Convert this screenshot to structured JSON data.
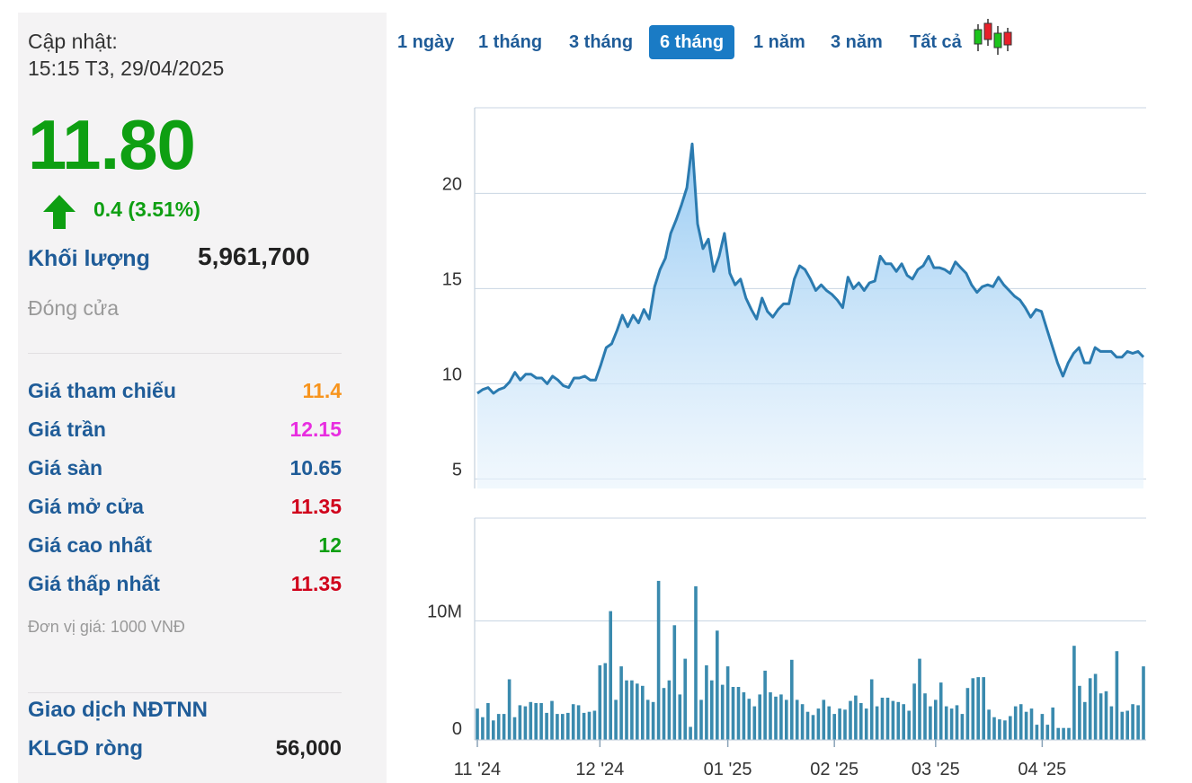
{
  "info": {
    "updated_label": "Cập nhật:",
    "updated_time": "15:15 T3, 29/04/2025",
    "price": "11.80",
    "change": "0.4 (3.51%)",
    "volume_label": "Khối lượng",
    "volume_value": "5,961,700",
    "status": "Đóng cửa",
    "rows": [
      {
        "label": "Giá tham chiếu",
        "value": "11.4",
        "color": "#f7941d"
      },
      {
        "label": "Giá trần",
        "value": "12.15",
        "color": "#e82de0"
      },
      {
        "label": "Giá sàn",
        "value": "10.65",
        "color": "#1f5c98"
      },
      {
        "label": "Giá mở cửa",
        "value": "11.35",
        "color": "#d0021b"
      },
      {
        "label": "Giá cao nhất",
        "value": "12",
        "color": "#0e9f12"
      },
      {
        "label": "Giá thấp nhất",
        "value": "11.35",
        "color": "#d0021b"
      }
    ],
    "unit": "Đơn vị giá: 1000 VNĐ",
    "foreign_title": "Giao dịch NĐTNN",
    "foreign_net_label": "KLGD ròng",
    "foreign_net_value": "56,000"
  },
  "tabs": [
    {
      "label": "1 ngày"
    },
    {
      "label": "1 tháng"
    },
    {
      "label": "3 tháng"
    },
    {
      "label": "6 tháng",
      "active": true
    },
    {
      "label": "1 năm"
    },
    {
      "label": "3 năm"
    },
    {
      "label": "Tất cả"
    }
  ],
  "colors": {
    "up": "#0e9f12",
    "line": "#2b7bb0",
    "bar": "#3a8aae",
    "accent": "#1a7bc5"
  },
  "chart_data": [
    {
      "type": "area",
      "title": "",
      "xlabel": "",
      "ylabel": "",
      "x_ticks": [
        "11 '24",
        "12 '24",
        "01 '25",
        "02 '25",
        "03 '25",
        "04 '25"
      ],
      "y_ticks": [
        5,
        10,
        15,
        20
      ],
      "ylim": [
        4.5,
        24.5
      ],
      "grid": true,
      "series": [
        {
          "values": [
            9.5,
            9.7,
            9.8,
            9.5,
            9.7,
            9.8,
            10.1,
            10.6,
            10.2,
            10.5,
            10.5,
            10.3,
            10.3,
            10.0,
            10.4,
            10.2,
            9.9,
            9.8,
            10.3,
            10.3,
            10.4,
            10.2,
            10.2,
            11.0,
            11.9,
            12.1,
            12.8,
            13.6,
            13.0,
            13.6,
            13.2,
            13.9,
            13.4,
            15.1,
            16.0,
            16.6,
            17.9,
            18.6,
            19.4,
            20.3,
            22.6,
            18.4,
            17.1,
            17.6,
            15.9,
            16.7,
            17.9,
            15.8,
            15.2,
            15.5,
            14.5,
            13.9,
            13.4,
            14.5,
            13.8,
            13.5,
            13.9,
            14.2,
            14.2,
            15.5,
            16.2,
            16.0,
            15.5,
            14.9,
            15.2,
            14.9,
            14.7,
            14.4,
            14.0,
            15.6,
            15.0,
            15.3,
            14.9,
            15.3,
            15.4,
            16.7,
            16.3,
            16.3,
            15.9,
            16.3,
            15.7,
            15.5,
            16.0,
            16.2,
            16.7,
            16.1,
            16.1,
            16.0,
            15.8,
            16.4,
            16.1,
            15.8,
            15.2,
            14.8,
            15.1,
            15.2,
            15.1,
            15.6,
            15.2,
            14.9,
            14.6,
            14.4,
            14.0,
            13.5,
            13.9,
            13.8,
            12.9,
            12.0,
            11.1,
            10.4,
            11.1,
            11.6,
            11.9,
            11.1,
            11.1,
            11.9,
            11.7,
            11.7,
            11.7,
            11.4,
            11.4,
            11.7,
            11.6,
            11.7,
            11.4
          ]
        }
      ]
    },
    {
      "type": "bar",
      "title": "",
      "xlabel": "",
      "ylabel": "",
      "x_ticks": [
        "11 '24",
        "12 '24",
        "01 '25",
        "02 '25",
        "03 '25",
        "04 '25"
      ],
      "y_tick_values": [
        0,
        10
      ],
      "y_tick_labels": [
        "0",
        "10M"
      ],
      "ylim": [
        -1,
        19.5
      ],
      "unit": "million shares",
      "series": [
        {
          "values": [
            1.9,
            1.1,
            2.4,
            0.8,
            1.4,
            1.4,
            4.6,
            1.1,
            2.2,
            2.1,
            2.5,
            2.4,
            2.4,
            1.5,
            2.6,
            1.4,
            1.4,
            1.5,
            2.3,
            2.2,
            1.5,
            1.6,
            1.7,
            5.9,
            6.1,
            10.9,
            2.7,
            5.8,
            4.5,
            4.5,
            4.2,
            4.0,
            2.7,
            2.5,
            13.7,
            3.8,
            4.5,
            9.6,
            3.2,
            6.5,
            0.2,
            13.2,
            2.7,
            5.9,
            4.5,
            9.1,
            4.1,
            5.8,
            3.9,
            3.9,
            3.4,
            2.8,
            2.1,
            3.2,
            5.4,
            3.4,
            3.0,
            3.2,
            2.7,
            6.4,
            2.7,
            2.3,
            1.6,
            1.3,
            1.9,
            2.7,
            2.1,
            1.4,
            1.9,
            1.8,
            2.6,
            3.1,
            2.4,
            1.9,
            4.6,
            2.1,
            2.9,
            2.9,
            2.6,
            2.5,
            2.3,
            1.7,
            4.2,
            6.5,
            3.3,
            2.1,
            2.7,
            4.3,
            2.1,
            1.9,
            2.2,
            1.4,
            3.8,
            4.7,
            4.8,
            4.8,
            1.8,
            1.1,
            0.9,
            0.8,
            1.2,
            2.1,
            2.3,
            1.6,
            1.9,
            0.4,
            1.4,
            0.4,
            2.0,
            0.1,
            0.1,
            0.1,
            7.7,
            4.0,
            2.5,
            4.7,
            5.1,
            3.3,
            3.5,
            2.1,
            7.2,
            1.6,
            1.7,
            2.3,
            2.2,
            5.8
          ]
        }
      ]
    }
  ]
}
